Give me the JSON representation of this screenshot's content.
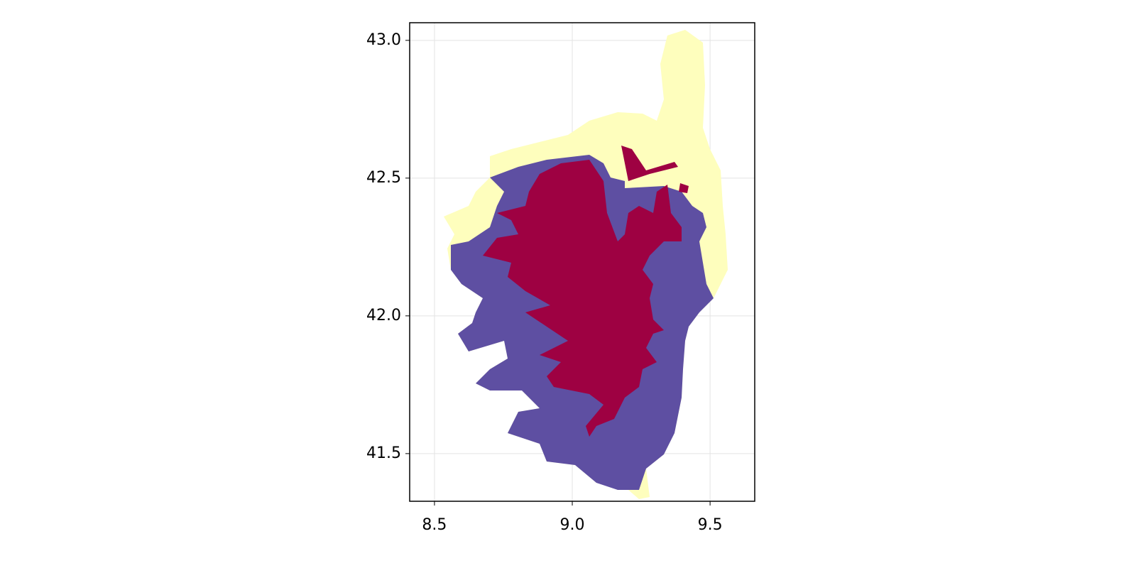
{
  "chart_data": {
    "type": "map",
    "xlim": [
      8.41,
      9.662
    ],
    "ylim": [
      41.327,
      43.064
    ],
    "xticks": [
      8.5,
      {
        "value": 9,
        "label": "9.0"
      },
      9.5
    ],
    "yticks": [
      41.5,
      {
        "value": 42,
        "label": "42.0"
      },
      42.5,
      {
        "value": 43,
        "label": "43.0"
      }
    ],
    "grid": true,
    "colors": [
      "#fefebd",
      "#5e4fa2",
      "#9e0142"
    ]
  }
}
